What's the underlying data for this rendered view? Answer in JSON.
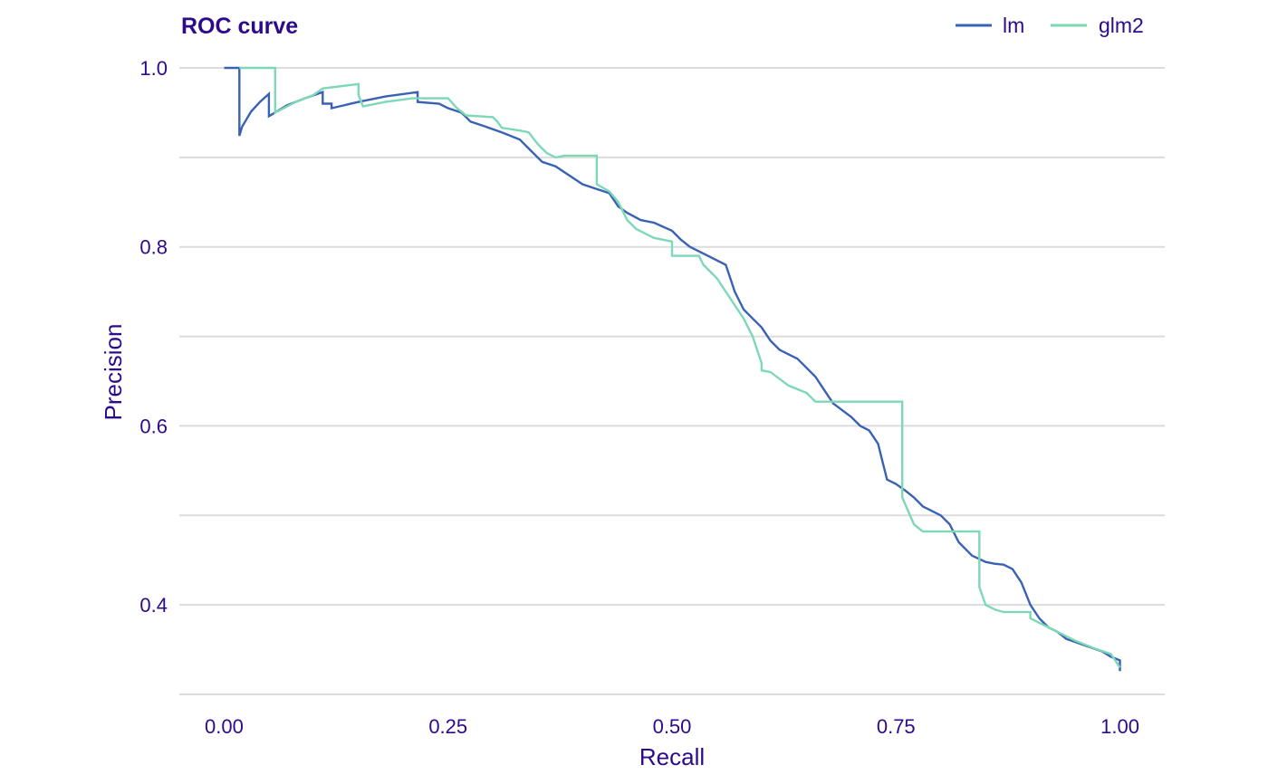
{
  "chart_data": {
    "type": "line",
    "title": "ROC curve",
    "xlabel": "Recall",
    "ylabel": "Precision",
    "xlim": [
      -0.05,
      1.05
    ],
    "ylim": [
      0.3,
      1.0
    ],
    "x_ticks": [
      0.0,
      0.25,
      0.5,
      0.75,
      1.0
    ],
    "x_tick_labels": [
      "0.00",
      "0.25",
      "0.50",
      "0.75",
      "1.00"
    ],
    "y_ticks": [
      0.4,
      0.6,
      0.8,
      1.0
    ],
    "y_tick_labels": [
      "0.4",
      "0.6",
      "0.8",
      "1.0"
    ],
    "y_gridlines": [
      0.3,
      0.4,
      0.5,
      0.6,
      0.7,
      0.8,
      0.9,
      1.0
    ],
    "grid": "horizontal",
    "legend_position": "top-right",
    "colors": {
      "text": "#2d0a8c",
      "grid": "#dcdcdc"
    },
    "series": [
      {
        "name": "lm",
        "color": "#3a62b3",
        "points": [
          [
            0.0,
            1.0
          ],
          [
            0.017,
            1.0
          ],
          [
            0.017,
            0.924
          ],
          [
            0.02,
            0.934
          ],
          [
            0.03,
            0.951
          ],
          [
            0.04,
            0.962
          ],
          [
            0.05,
            0.971
          ],
          [
            0.05,
            0.946
          ],
          [
            0.07,
            0.958
          ],
          [
            0.09,
            0.966
          ],
          [
            0.11,
            0.973
          ],
          [
            0.11,
            0.96
          ],
          [
            0.12,
            0.96
          ],
          [
            0.12,
            0.955
          ],
          [
            0.15,
            0.962
          ],
          [
            0.18,
            0.968
          ],
          [
            0.216,
            0.973
          ],
          [
            0.216,
            0.962
          ],
          [
            0.24,
            0.96
          ],
          [
            0.25,
            0.955
          ],
          [
            0.265,
            0.95
          ],
          [
            0.275,
            0.94
          ],
          [
            0.29,
            0.935
          ],
          [
            0.31,
            0.928
          ],
          [
            0.33,
            0.92
          ],
          [
            0.34,
            0.91
          ],
          [
            0.355,
            0.895
          ],
          [
            0.37,
            0.89
          ],
          [
            0.385,
            0.88
          ],
          [
            0.4,
            0.87
          ],
          [
            0.415,
            0.865
          ],
          [
            0.43,
            0.86
          ],
          [
            0.44,
            0.845
          ],
          [
            0.45,
            0.838
          ],
          [
            0.465,
            0.83
          ],
          [
            0.48,
            0.827
          ],
          [
            0.5,
            0.818
          ],
          [
            0.51,
            0.808
          ],
          [
            0.52,
            0.8
          ],
          [
            0.54,
            0.79
          ],
          [
            0.56,
            0.78
          ],
          [
            0.565,
            0.765
          ],
          [
            0.57,
            0.75
          ],
          [
            0.58,
            0.73
          ],
          [
            0.59,
            0.72
          ],
          [
            0.6,
            0.71
          ],
          [
            0.61,
            0.695
          ],
          [
            0.62,
            0.685
          ],
          [
            0.64,
            0.675
          ],
          [
            0.65,
            0.665
          ],
          [
            0.66,
            0.655
          ],
          [
            0.67,
            0.64
          ],
          [
            0.68,
            0.625
          ],
          [
            0.7,
            0.61
          ],
          [
            0.71,
            0.6
          ],
          [
            0.72,
            0.595
          ],
          [
            0.73,
            0.58
          ],
          [
            0.735,
            0.56
          ],
          [
            0.74,
            0.54
          ],
          [
            0.75,
            0.535
          ],
          [
            0.76,
            0.528
          ],
          [
            0.77,
            0.52
          ],
          [
            0.78,
            0.51
          ],
          [
            0.79,
            0.505
          ],
          [
            0.8,
            0.5
          ],
          [
            0.81,
            0.49
          ],
          [
            0.82,
            0.47
          ],
          [
            0.835,
            0.455
          ],
          [
            0.85,
            0.448
          ],
          [
            0.86,
            0.446
          ],
          [
            0.87,
            0.445
          ],
          [
            0.88,
            0.44
          ],
          [
            0.89,
            0.425
          ],
          [
            0.9,
            0.4
          ],
          [
            0.91,
            0.385
          ],
          [
            0.92,
            0.375
          ],
          [
            0.93,
            0.37
          ],
          [
            0.94,
            0.362
          ],
          [
            0.96,
            0.355
          ],
          [
            0.98,
            0.348
          ],
          [
            0.99,
            0.342
          ],
          [
            1.0,
            0.338
          ],
          [
            1.0,
            0.326
          ]
        ]
      },
      {
        "name": "glm2",
        "color": "#7dd8b6",
        "points": [
          [
            0.017,
            1.0
          ],
          [
            0.057,
            1.0
          ],
          [
            0.057,
            0.95
          ],
          [
            0.08,
            0.962
          ],
          [
            0.1,
            0.97
          ],
          [
            0.11,
            0.977
          ],
          [
            0.15,
            0.982
          ],
          [
            0.15,
            0.97
          ],
          [
            0.155,
            0.957
          ],
          [
            0.18,
            0.962
          ],
          [
            0.21,
            0.966
          ],
          [
            0.23,
            0.966
          ],
          [
            0.25,
            0.966
          ],
          [
            0.26,
            0.955
          ],
          [
            0.27,
            0.947
          ],
          [
            0.3,
            0.945
          ],
          [
            0.305,
            0.94
          ],
          [
            0.31,
            0.933
          ],
          [
            0.33,
            0.93
          ],
          [
            0.34,
            0.928
          ],
          [
            0.35,
            0.915
          ],
          [
            0.36,
            0.905
          ],
          [
            0.37,
            0.9
          ],
          [
            0.38,
            0.902
          ],
          [
            0.416,
            0.902
          ],
          [
            0.416,
            0.87
          ],
          [
            0.43,
            0.862
          ],
          [
            0.44,
            0.85
          ],
          [
            0.45,
            0.83
          ],
          [
            0.46,
            0.82
          ],
          [
            0.47,
            0.815
          ],
          [
            0.48,
            0.81
          ],
          [
            0.49,
            0.808
          ],
          [
            0.5,
            0.806
          ],
          [
            0.5,
            0.79
          ],
          [
            0.53,
            0.79
          ],
          [
            0.535,
            0.78
          ],
          [
            0.55,
            0.765
          ],
          [
            0.56,
            0.75
          ],
          [
            0.57,
            0.735
          ],
          [
            0.58,
            0.72
          ],
          [
            0.59,
            0.7
          ],
          [
            0.6,
            0.67
          ],
          [
            0.6,
            0.662
          ],
          [
            0.61,
            0.66
          ],
          [
            0.63,
            0.645
          ],
          [
            0.65,
            0.637
          ],
          [
            0.66,
            0.627
          ],
          [
            0.757,
            0.627
          ],
          [
            0.757,
            0.52
          ],
          [
            0.77,
            0.49
          ],
          [
            0.78,
            0.482
          ],
          [
            0.843,
            0.482
          ],
          [
            0.843,
            0.42
          ],
          [
            0.85,
            0.4
          ],
          [
            0.86,
            0.395
          ],
          [
            0.87,
            0.392
          ],
          [
            0.9,
            0.392
          ],
          [
            0.9,
            0.385
          ],
          [
            0.91,
            0.38
          ],
          [
            0.93,
            0.37
          ],
          [
            0.95,
            0.36
          ],
          [
            0.97,
            0.352
          ],
          [
            0.99,
            0.345
          ],
          [
            1.0,
            0.33
          ]
        ]
      }
    ]
  }
}
